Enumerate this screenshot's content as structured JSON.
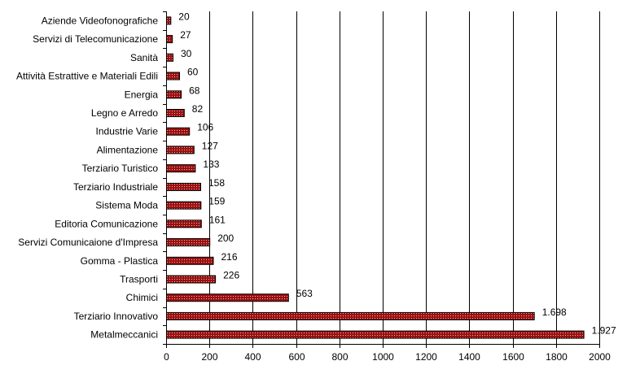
{
  "chart_data": {
    "type": "bar",
    "orientation": "horizontal",
    "title": "",
    "xlabel": "",
    "ylabel": "",
    "xlim": [
      0,
      2000
    ],
    "xticks": [
      0,
      200,
      400,
      600,
      800,
      1000,
      1200,
      1400,
      1600,
      1800,
      2000
    ],
    "grid": {
      "vertical": true,
      "horizontal": false
    },
    "legend": "none",
    "bar_color": "#9b1010",
    "categories": [
      "Aziende Videofonografiche",
      "Servizi di Telecomunicazione",
      "Sanità",
      "Attività Estrattive e Materiali Edili",
      "Energia",
      "Legno e Arredo",
      "Industrie Varie",
      "Alimentazione",
      "Terziario Turistico",
      "Terziario Industriale",
      "Sistema Moda",
      "Editoria Comunicazione",
      "Servizi Comunicaione d'Impresa",
      "Gomma - Plastica",
      "Trasporti",
      "Chimici",
      "Terziario Innovativo",
      "Metalmeccanici"
    ],
    "values": [
      20,
      27,
      30,
      60,
      68,
      82,
      106,
      127,
      133,
      158,
      159,
      161,
      200,
      216,
      226,
      563,
      1698,
      1927
    ],
    "value_labels": [
      "20",
      "27",
      "30",
      "60",
      "68",
      "82",
      "106",
      "127",
      "133",
      "158",
      "159",
      "161",
      "200",
      "216",
      "226",
      "563",
      "1.698",
      "1.927"
    ]
  }
}
